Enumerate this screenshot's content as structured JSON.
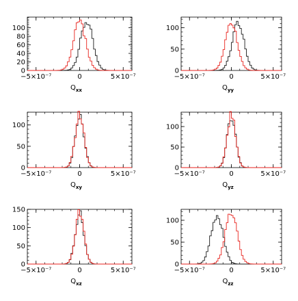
{
  "colors": {
    "black_series": "#1a1a1a",
    "red_series": "#e8221c"
  },
  "chart_data": [
    {
      "type": "histogram",
      "xlabel": "Q",
      "xlabel_sub": "xx",
      "xlim": [
        -6e-07,
        6e-07
      ],
      "ylim": [
        0,
        125
      ],
      "x_ticks": [
        {
          "value": -5e-07,
          "label": "−5×10⁻⁷"
        },
        {
          "value": 0,
          "label": "0"
        },
        {
          "value": 5e-07,
          "label": "5×10⁻⁷"
        }
      ],
      "y_ticks": [
        0,
        20,
        40,
        60,
        80,
        100
      ],
      "series": [
        {
          "color": "black",
          "peak_x": 8e-08,
          "peak_y": 115,
          "width": 7e-08
        },
        {
          "color": "red",
          "peak_x": 0,
          "peak_y": 115,
          "width": 7e-08
        }
      ]
    },
    {
      "type": "histogram",
      "xlabel": "Q",
      "xlabel_sub": "xy",
      "xlim": [
        -6e-07,
        6e-07
      ],
      "ylim": [
        0,
        130
      ],
      "x_ticks": [
        {
          "value": -5e-07,
          "label": "−5×10⁻⁷"
        },
        {
          "value": 0,
          "label": "0"
        },
        {
          "value": 5e-07,
          "label": "5×10⁻⁷"
        }
      ],
      "y_ticks": [
        0,
        50,
        100
      ],
      "series": [
        {
          "color": "black",
          "peak_x": 0,
          "peak_y": 122,
          "width": 5e-08
        },
        {
          "color": "red",
          "peak_x": 0,
          "peak_y": 124,
          "width": 5e-08
        }
      ]
    },
    {
      "type": "histogram",
      "xlabel": "Q",
      "xlabel_sub": "xz",
      "xlim": [
        -6e-07,
        6e-07
      ],
      "ylim": [
        0,
        150
      ],
      "x_ticks": [
        {
          "value": -5e-07,
          "label": "−5×10⁻⁷"
        },
        {
          "value": 0,
          "label": "0"
        },
        {
          "value": 5e-07,
          "label": "5×10⁻⁷"
        }
      ],
      "y_ticks": [
        0,
        50,
        100,
        150
      ],
      "series": [
        {
          "color": "black",
          "peak_x": 0,
          "peak_y": 140,
          "width": 5e-08
        },
        {
          "color": "red",
          "peak_x": 0,
          "peak_y": 142,
          "width": 5e-08
        }
      ]
    },
    {
      "type": "histogram",
      "xlabel": "Q",
      "xlabel_sub": "yy",
      "xlim": [
        -6e-07,
        6e-07
      ],
      "ylim": [
        0,
        125
      ],
      "x_ticks": [
        {
          "value": -5e-07,
          "label": "−5×10⁻⁷"
        },
        {
          "value": 0,
          "label": "0"
        },
        {
          "value": 5e-07,
          "label": "5×10⁻⁷"
        }
      ],
      "y_ticks": [
        0,
        50,
        100
      ],
      "series": [
        {
          "color": "black",
          "peak_x": 8e-08,
          "peak_y": 115,
          "width": 7e-08
        },
        {
          "color": "red",
          "peak_x": 0,
          "peak_y": 115,
          "width": 7e-08
        }
      ]
    },
    {
      "type": "histogram",
      "xlabel": "Q",
      "xlabel_sub": "yz",
      "xlim": [
        -6e-07,
        6e-07
      ],
      "ylim": [
        0,
        135
      ],
      "x_ticks": [
        {
          "value": -5e-07,
          "label": "−5×10⁻⁷"
        },
        {
          "value": 0,
          "label": "0"
        },
        {
          "value": 5e-07,
          "label": "5×10⁻⁷"
        }
      ],
      "y_ticks": [
        0,
        50,
        100
      ],
      "series": [
        {
          "color": "black",
          "peak_x": 0,
          "peak_y": 125,
          "width": 5e-08
        },
        {
          "color": "red",
          "peak_x": 0,
          "peak_y": 128,
          "width": 5e-08
        }
      ]
    },
    {
      "type": "histogram",
      "xlabel": "Q",
      "xlabel_sub": "zz",
      "xlim": [
        -6e-07,
        6e-07
      ],
      "ylim": [
        0,
        125
      ],
      "x_ticks": [
        {
          "value": -5e-07,
          "label": "−5×10⁻⁷"
        },
        {
          "value": 0,
          "label": "0"
        },
        {
          "value": 5e-07,
          "label": "5×10⁻⁷"
        }
      ],
      "y_ticks": [
        0,
        50,
        100
      ],
      "series": [
        {
          "color": "black",
          "peak_x": -1.7e-07,
          "peak_y": 115,
          "width": 7e-08
        },
        {
          "color": "red",
          "peak_x": 0,
          "peak_y": 120,
          "width": 7e-08
        }
      ]
    }
  ]
}
